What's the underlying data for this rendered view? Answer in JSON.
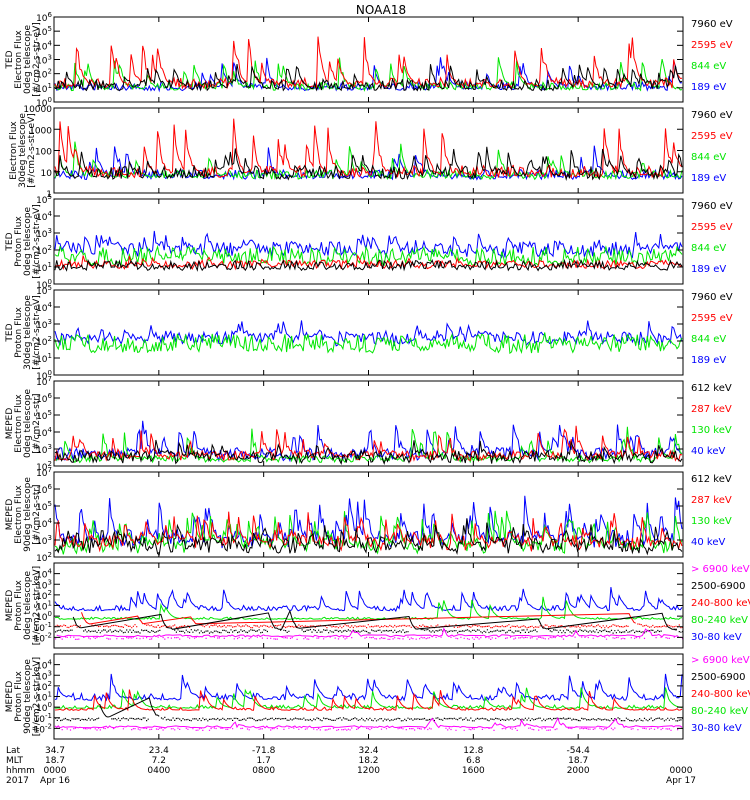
{
  "title": "NOAA18",
  "colors": {
    "black": "#000000",
    "red": "#ff0000",
    "green": "#00e600",
    "blue": "#0000ff",
    "magenta": "#ff00ff"
  },
  "chart_data": {
    "type": "line",
    "x_axis": {
      "rows": [
        {
          "label": "Lat",
          "ticks": [
            "34.7",
            "23.4",
            "-71.8",
            "32.4",
            "12.8",
            "-54.4",
            ""
          ]
        },
        {
          "label": "MLT",
          "ticks": [
            "18.7",
            "7.2",
            "1.7",
            "18.2",
            "6.8",
            "18.7",
            ""
          ]
        },
        {
          "label": "hhmm",
          "ticks": [
            "0000",
            "0400",
            "0800",
            "1200",
            "1600",
            "2000",
            "0000"
          ]
        },
        {
          "label": "2017",
          "ticks": [
            "Apr 16",
            "",
            "",
            "",
            "",
            "",
            "Apr 17"
          ]
        }
      ],
      "tick_hours": [
        0,
        4,
        8,
        12,
        16,
        20,
        24
      ]
    },
    "panels": [
      {
        "ylabel": [
          "TED",
          "Electron Flux",
          "0deg telescope",
          "[#/cm2-s-str-eV]"
        ],
        "yscale": "log",
        "ylim_exp": [
          0,
          6
        ],
        "yticks": [
          {
            "e": 0,
            "label": "10^0"
          },
          {
            "e": 1,
            "label": "10^1"
          },
          {
            "e": 2,
            "label": "10^2"
          },
          {
            "e": 3,
            "label": "10^3"
          },
          {
            "e": 4,
            "label": "10^4"
          },
          {
            "e": 5,
            "label": "10^5"
          },
          {
            "e": 6,
            "label": "10^6"
          }
        ],
        "legend": [
          {
            "name": "7960 eV",
            "color": "#000000"
          },
          {
            "name": "2595 eV",
            "color": "#ff0000"
          },
          {
            "name": "844 eV",
            "color": "#00e600"
          },
          {
            "name": "189 eV",
            "color": "#0000ff"
          }
        ],
        "series": [
          {
            "color": "#0000ff",
            "base": 1.0,
            "noise": 0.4,
            "spike": 2.3,
            "p": 0.04,
            "seed": 11,
            "burst": true
          },
          {
            "color": "#00e600",
            "base": 1.0,
            "noise": 0.4,
            "spike": 2.4,
            "p": 0.05,
            "seed": 12,
            "burst": true
          },
          {
            "color": "#ff0000",
            "base": 1.2,
            "noise": 0.5,
            "spike": 3.7,
            "p": 0.07,
            "seed": 13,
            "burst": true
          },
          {
            "color": "#000000",
            "base": 1.0,
            "noise": 0.6,
            "spike": 2.0,
            "p": 0.08,
            "seed": 14,
            "burst": true
          }
        ]
      },
      {
        "ylabel": [
          "Electron Flux",
          "30deg telescope",
          "[#/cm2-s-str-eV]"
        ],
        "yscale": "log",
        "ylim_exp": [
          0,
          4
        ],
        "yticks": [
          {
            "e": 0,
            "label": "1"
          },
          {
            "e": 1,
            "label": "10"
          },
          {
            "e": 2,
            "label": "100"
          },
          {
            "e": 3,
            "label": "1000"
          },
          {
            "e": 4,
            "label": "10000"
          }
        ],
        "legend": [
          {
            "name": "7960 eV",
            "color": "#000000"
          },
          {
            "name": "2595 eV",
            "color": "#ff0000"
          },
          {
            "name": "844 eV",
            "color": "#00e600"
          },
          {
            "name": "189 eV",
            "color": "#0000ff"
          }
        ],
        "series": [
          {
            "color": "#0000ff",
            "base": 0.8,
            "noise": 0.3,
            "spike": 1.6,
            "p": 0.03,
            "seed": 21,
            "burst": true
          },
          {
            "color": "#00e600",
            "base": 0.8,
            "noise": 0.3,
            "spike": 1.7,
            "p": 0.04,
            "seed": 22,
            "burst": true
          },
          {
            "color": "#ff0000",
            "base": 0.9,
            "noise": 0.4,
            "spike": 2.8,
            "p": 0.07,
            "seed": 23,
            "burst": true
          },
          {
            "color": "#000000",
            "base": 0.8,
            "noise": 0.5,
            "spike": 1.4,
            "p": 0.08,
            "seed": 24,
            "burst": true
          }
        ]
      },
      {
        "ylabel": [
          "TED",
          "Proton Flux",
          "0deg telescope",
          "[#/cm2-s-str-eV]"
        ],
        "yscale": "log",
        "ylim_exp": [
          0,
          5
        ],
        "yticks": [
          {
            "e": 0,
            "label": "10^0"
          },
          {
            "e": 1,
            "label": "10^1"
          },
          {
            "e": 2,
            "label": "10^2"
          },
          {
            "e": 3,
            "label": "10^3"
          },
          {
            "e": 4,
            "label": "10^4"
          },
          {
            "e": 5,
            "label": "10^5"
          }
        ],
        "legend": [
          {
            "name": "7960 eV",
            "color": "#000000"
          },
          {
            "name": "2595 eV",
            "color": "#ff0000"
          },
          {
            "name": "844 eV",
            "color": "#00e600"
          },
          {
            "name": "189 eV",
            "color": "#0000ff"
          }
        ],
        "series": [
          {
            "color": "#0000ff",
            "base": 1.9,
            "noise": 0.6,
            "spike": 1.4,
            "p": 0.12,
            "seed": 31
          },
          {
            "color": "#00e600",
            "base": 1.3,
            "noise": 0.9,
            "spike": 1.0,
            "p": 0.15,
            "seed": 32
          },
          {
            "color": "#ff0000",
            "base": 1.1,
            "noise": 0.3,
            "spike": 0.6,
            "p": 0.05,
            "seed": 33
          },
          {
            "color": "#000000",
            "base": 1.0,
            "noise": 0.4,
            "spike": 0.5,
            "p": 0.05,
            "seed": 34
          }
        ]
      },
      {
        "ylabel": [
          "TED",
          "Proton Flux",
          "30deg telescope",
          "[#/cm2-s-str-eV]"
        ],
        "yscale": "log",
        "ylim_exp": [
          0,
          5
        ],
        "yticks": [
          {
            "e": 0,
            "label": "10^0"
          },
          {
            "e": 1,
            "label": "10^1"
          },
          {
            "e": 2,
            "label": "10^2"
          },
          {
            "e": 3,
            "label": "10^3"
          },
          {
            "e": 4,
            "label": "10^4"
          },
          {
            "e": 5,
            "label": "10^5"
          }
        ],
        "legend": [
          {
            "name": "7960 eV",
            "color": "#000000"
          },
          {
            "name": "2595 eV",
            "color": "#ff0000"
          },
          {
            "name": "844 eV",
            "color": "#00e600"
          },
          {
            "name": "189 eV",
            "color": "#0000ff"
          }
        ],
        "series": [
          {
            "color": "#0000ff",
            "base": 2.1,
            "noise": 0.5,
            "spike": 1.2,
            "p": 0.1,
            "seed": 41
          },
          {
            "color": "#00e600",
            "base": 1.6,
            "noise": 0.8,
            "spike": 1.0,
            "p": 0.12,
            "seed": 42
          }
        ]
      },
      {
        "ylabel": [
          "MEPED",
          "Electron Flux",
          "0deg telescope",
          "[#/cm2-s-str]"
        ],
        "yscale": "log",
        "ylim_exp": [
          2,
          7
        ],
        "yticks": [
          {
            "e": 2,
            "label": "10^2"
          },
          {
            "e": 3,
            "label": "10^3"
          },
          {
            "e": 4,
            "label": "10^4"
          },
          {
            "e": 5,
            "label": "10^5"
          },
          {
            "e": 6,
            "label": "10^6"
          },
          {
            "e": 7,
            "label": "10^7"
          }
        ],
        "legend": [
          {
            "name": "612 keV",
            "color": "#000000"
          },
          {
            "name": "287 keV",
            "color": "#ff0000"
          },
          {
            "name": "130 keV",
            "color": "#00e600"
          },
          {
            "name": "40 keV",
            "color": "#0000ff"
          }
        ],
        "series": [
          {
            "color": "#0000ff",
            "base": 2.7,
            "noise": 0.4,
            "spike": 2.3,
            "p": 0.08,
            "seed": 51
          },
          {
            "color": "#00e600",
            "base": 2.4,
            "noise": 0.2,
            "spike": 2.2,
            "p": 0.05,
            "seed": 52
          },
          {
            "color": "#ff0000",
            "base": 2.6,
            "noise": 0.3,
            "spike": 2.0,
            "p": 0.05,
            "seed": 53
          },
          {
            "color": "#000000",
            "base": 2.5,
            "noise": 0.4,
            "spike": 1.2,
            "p": 0.06,
            "seed": 54
          }
        ]
      },
      {
        "ylabel": [
          "MEPED",
          "Electron Flux",
          "90deg telescope",
          "[#/cm2-s-str]"
        ],
        "yscale": "log",
        "ylim_exp": [
          2,
          7
        ],
        "yticks": [
          {
            "e": 2,
            "label": "10^2"
          },
          {
            "e": 3,
            "label": "10^3"
          },
          {
            "e": 4,
            "label": "10^4"
          },
          {
            "e": 5,
            "label": "10^5"
          },
          {
            "e": 6,
            "label": "10^6"
          },
          {
            "e": 7,
            "label": "10^7"
          }
        ],
        "legend": [
          {
            "name": "612 keV",
            "color": "#000000"
          },
          {
            "name": "287 keV",
            "color": "#ff0000"
          },
          {
            "name": "130 keV",
            "color": "#00e600"
          },
          {
            "name": "40 keV",
            "color": "#0000ff"
          }
        ],
        "series": [
          {
            "color": "#0000ff",
            "base": 3.0,
            "noise": 0.6,
            "spike": 2.8,
            "p": 0.12,
            "seed": 61
          },
          {
            "color": "#00e600",
            "base": 2.6,
            "noise": 0.5,
            "spike": 2.5,
            "p": 0.12,
            "seed": 62
          },
          {
            "color": "#ff0000",
            "base": 2.8,
            "noise": 0.5,
            "spike": 2.2,
            "p": 0.1,
            "seed": 63
          },
          {
            "color": "#000000",
            "base": 2.6,
            "noise": 0.6,
            "spike": 1.8,
            "p": 0.1,
            "seed": 64
          }
        ]
      },
      {
        "ylabel": [
          "MEPED",
          "Proton Flux",
          "0deg telescope",
          "[#/cm2-s-str-keV]"
        ],
        "yscale": "log",
        "ylim_exp": [
          -3,
          5
        ],
        "yticks": [
          {
            "e": -2,
            "label": "10^-2"
          },
          {
            "e": -1,
            "label": "10^-1"
          },
          {
            "e": 0,
            "label": "10^0"
          },
          {
            "e": 1,
            "label": "10^1"
          },
          {
            "e": 2,
            "label": "10^2"
          },
          {
            "e": 3,
            "label": "10^3"
          },
          {
            "e": 4,
            "label": "10^4"
          }
        ],
        "legend": [
          {
            "name": "> 6900 keV",
            "color": "#ff00ff"
          },
          {
            "name": "2500-6900",
            "color": "#000000"
          },
          {
            "name": "240-800 keV",
            "color": "#ff0000"
          },
          {
            "name": "80-240 keV",
            "color": "#00e600"
          },
          {
            "name": "30-80 keV",
            "color": "#0000ff"
          }
        ],
        "series": [
          {
            "color": "#0000ff",
            "base": 0.6,
            "noise": 0.4,
            "spike": 2.2,
            "p": 0.07,
            "seed": 71
          },
          {
            "color": "#00e600",
            "base": -0.3,
            "noise": 0.2,
            "spike": 2.2,
            "p": 0.03,
            "seed": 72
          },
          {
            "color": "#ff0000",
            "base": -1.1,
            "noise": 0.3,
            "spike": 2.0,
            "p": 0.02,
            "seed": 73,
            "dots": true
          },
          {
            "color": "#000000",
            "base": -1.6,
            "noise": 0.3,
            "spike": 2.5,
            "p": 0.015,
            "seed": 74,
            "dots": true
          },
          {
            "color": "#ff00ff",
            "base": -2.2,
            "noise": 0.2,
            "spike": 1.0,
            "p": 0.015,
            "seed": 75,
            "dots": true
          }
        ]
      },
      {
        "ylabel": [
          "MEPED",
          "Proton Flux",
          "90deg telescope",
          "[#/cm2-s-str-keV]"
        ],
        "yscale": "log",
        "ylim_exp": [
          -3,
          5
        ],
        "yticks": [
          {
            "e": -2,
            "label": "10^-2"
          },
          {
            "e": -1,
            "label": "10^-1"
          },
          {
            "e": 0,
            "label": "10^0"
          },
          {
            "e": 1,
            "label": "10^1"
          },
          {
            "e": 2,
            "label": "10^2"
          },
          {
            "e": 3,
            "label": "10^3"
          },
          {
            "e": 4,
            "label": "10^4"
          }
        ],
        "legend": [
          {
            "name": "> 6900 keV",
            "color": "#ff00ff"
          },
          {
            "name": "2500-6900",
            "color": "#000000"
          },
          {
            "name": "240-800 keV",
            "color": "#ff0000"
          },
          {
            "name": "80-240 keV",
            "color": "#00e600"
          },
          {
            "name": "30-80 keV",
            "color": "#0000ff"
          }
        ],
        "series": [
          {
            "color": "#0000ff",
            "base": 0.8,
            "noise": 0.5,
            "spike": 2.4,
            "p": 0.08,
            "seed": 81
          },
          {
            "color": "#00e600",
            "base": -0.1,
            "noise": 0.3,
            "spike": 2.3,
            "p": 0.05,
            "seed": 82
          },
          {
            "color": "#ff0000",
            "base": -0.3,
            "noise": 0.3,
            "spike": 2.0,
            "p": 0.04,
            "seed": 83
          },
          {
            "color": "#000000",
            "base": -1.3,
            "noise": 0.3,
            "spike": 2.3,
            "p": 0.015,
            "seed": 84,
            "dots": true
          },
          {
            "color": "#ff00ff",
            "base": -2.2,
            "noise": 0.2,
            "spike": 1.0,
            "p": 0.015,
            "seed": 85,
            "dots": true
          }
        ]
      }
    ]
  }
}
